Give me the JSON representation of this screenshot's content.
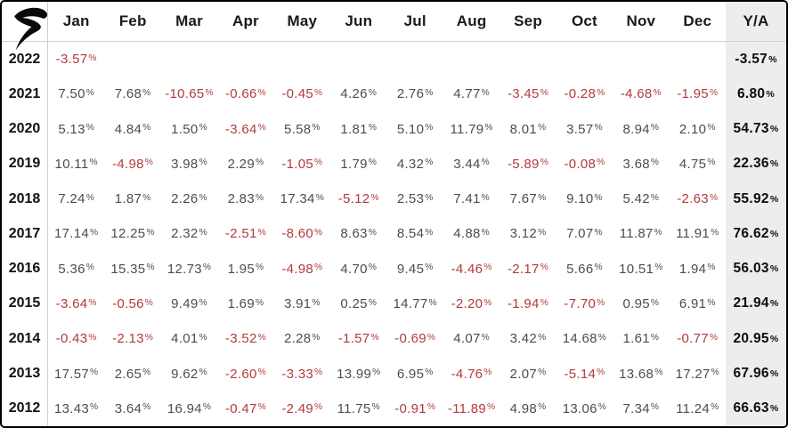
{
  "brand": {
    "logo_icon": "r-swoosh-logo"
  },
  "chart_data": {
    "type": "table",
    "title": "",
    "columns": [
      "Jan",
      "Feb",
      "Mar",
      "Apr",
      "May",
      "Jun",
      "Jul",
      "Aug",
      "Sep",
      "Oct",
      "Nov",
      "Dec",
      "Y/A"
    ],
    "rows": [
      {
        "year": "2022",
        "values": [
          "-3.57%",
          "",
          "",
          "",
          "",
          "",
          "",
          "",
          "",
          "",
          "",
          ""
        ],
        "total": "-3.57%"
      },
      {
        "year": "2021",
        "values": [
          "7.50%",
          "7.68%",
          "-10.65%",
          "-0.66%",
          "-0.45%",
          "4.26%",
          "2.76%",
          "4.77%",
          "-3.45%",
          "-0.28%",
          "-4.68%",
          "-1.95%"
        ],
        "total": "6.80%"
      },
      {
        "year": "2020",
        "values": [
          "5.13%",
          "4.84%",
          "1.50%",
          "-3.64%",
          "5.58%",
          "1.81%",
          "5.10%",
          "11.79%",
          "8.01%",
          "3.57%",
          "8.94%",
          "2.10%"
        ],
        "total": "54.73%"
      },
      {
        "year": "2019",
        "values": [
          "10.11%",
          "-4.98%",
          "3.98%",
          "2.29%",
          "-1.05%",
          "1.79%",
          "4.32%",
          "3.44%",
          "-5.89%",
          "-0.08%",
          "3.68%",
          "4.75%"
        ],
        "total": "22.36%"
      },
      {
        "year": "2018",
        "values": [
          "7.24%",
          "1.87%",
          "2.26%",
          "2.83%",
          "17.34%",
          "-5.12%",
          "2.53%",
          "7.41%",
          "7.67%",
          "9.10%",
          "5.42%",
          "-2.63%"
        ],
        "total": "55.92%"
      },
      {
        "year": "2017",
        "values": [
          "17.14%",
          "12.25%",
          "2.32%",
          "-2.51%",
          "-8.60%",
          "8.63%",
          "8.54%",
          "4.88%",
          "3.12%",
          "7.07%",
          "11.87%",
          "11.91%"
        ],
        "total": "76.62%"
      },
      {
        "year": "2016",
        "values": [
          "5.36%",
          "15.35%",
          "12.73%",
          "1.95%",
          "-4.98%",
          "4.70%",
          "9.45%",
          "-4.46%",
          "-2.17%",
          "5.66%",
          "10.51%",
          "1.94%"
        ],
        "total": "56.03%"
      },
      {
        "year": "2015",
        "values": [
          "-3.64%",
          "-0.56%",
          "9.49%",
          "1.69%",
          "3.91%",
          "0.25%",
          "14.77%",
          "-2.20%",
          "-1.94%",
          "-7.70%",
          "0.95%",
          "6.91%"
        ],
        "total": "21.94%"
      },
      {
        "year": "2014",
        "values": [
          "-0.43%",
          "-2.13%",
          "4.01%",
          "-3.52%",
          "2.28%",
          "-1.57%",
          "-0.69%",
          "4.07%",
          "3.42%",
          "14.68%",
          "1.61%",
          "-0.77%"
        ],
        "total": "20.95%"
      },
      {
        "year": "2013",
        "values": [
          "17.57%",
          "2.65%",
          "9.62%",
          "-2.60%",
          "-3.33%",
          "13.99%",
          "6.95%",
          "-4.76%",
          "2.07%",
          "-5.14%",
          "13.68%",
          "17.27%"
        ],
        "total": "67.96%"
      },
      {
        "year": "2012",
        "values": [
          "13.43%",
          "3.64%",
          "16.94%",
          "-0.47%",
          "-2.49%",
          "11.75%",
          "-0.91%",
          "-11.89%",
          "4.98%",
          "13.06%",
          "7.34%",
          "11.24%"
        ],
        "total": "66.63%"
      }
    ]
  },
  "colors": {
    "negative": "#b23b3b",
    "positive": "#4d4d4d",
    "year": "#121212",
    "header_text": "#1a1a1a",
    "total_bg": "#ededed",
    "frame_border": "#000000",
    "grid_line": "#d0d0d0",
    "logo": "#0a0a0a"
  }
}
